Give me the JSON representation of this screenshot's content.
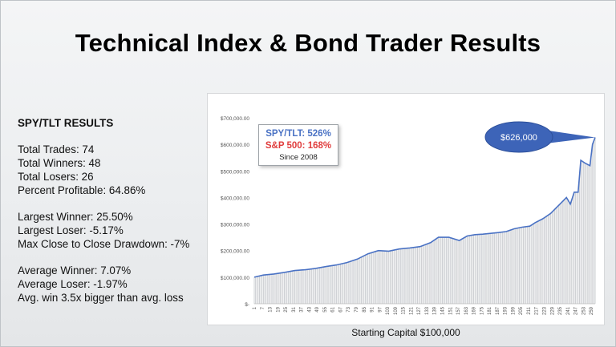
{
  "title": "Technical Index & Bond Trader Results",
  "stats": {
    "heading": "SPY/TLT RESULTS",
    "group1": [
      "Total Trades: 74",
      "Total Winners: 48",
      "Total Losers: 26",
      "Percent Profitable: 64.86%"
    ],
    "group2": [
      "Largest Winner: 25.50%",
      "Largest Loser: -5.17%",
      "Max Close to Close Drawdown: -7%"
    ],
    "group3": [
      "Average Winner: 7.07%",
      "Average Loser: -1.97%",
      "Avg. win 3.5x bigger than avg. loss"
    ]
  },
  "legend": {
    "line1": "SPY/TLT: 526%",
    "line2": "S&P 500: 168%",
    "line3": "Since 2008"
  },
  "callout": "$626,000",
  "caption": "Starting Capital $100,000",
  "colors": {
    "line": "#4a72c4",
    "bars": "#c9cbcf",
    "callout": "#3d64b8",
    "sp500": "#e03c3c"
  },
  "chart_data": {
    "type": "line",
    "ylim": [
      0,
      700000
    ],
    "y_ticks": [
      0,
      100000,
      200000,
      300000,
      400000,
      500000,
      600000,
      700000
    ],
    "y_tick_labels": [
      "$-",
      "$100,000.00",
      "$200,000.00",
      "$300,000.00",
      "$400,000.00",
      "$500,000.00",
      "$600,000.00",
      "$700,000.00"
    ],
    "x_tick_labels": [
      "1",
      "7",
      "13",
      "19",
      "25",
      "31",
      "37",
      "43",
      "49",
      "55",
      "61",
      "67",
      "73",
      "79",
      "85",
      "91",
      "97",
      "103",
      "109",
      "115",
      "121",
      "127",
      "133",
      "139",
      "145",
      "151",
      "157",
      "163",
      "169",
      "175",
      "181",
      "187",
      "193",
      "199",
      "205",
      "211",
      "217",
      "223",
      "229",
      "235",
      "241",
      "247",
      "253",
      "259"
    ],
    "x_range": [
      1,
      262
    ],
    "series": [
      {
        "points": [
          [
            1,
            100000
          ],
          [
            8,
            108000
          ],
          [
            16,
            112000
          ],
          [
            24,
            118000
          ],
          [
            32,
            125000
          ],
          [
            40,
            128000
          ],
          [
            48,
            133000
          ],
          [
            56,
            140000
          ],
          [
            64,
            146000
          ],
          [
            72,
            155000
          ],
          [
            80,
            168000
          ],
          [
            88,
            188000
          ],
          [
            96,
            200000
          ],
          [
            104,
            198000
          ],
          [
            112,
            206000
          ],
          [
            120,
            210000
          ],
          [
            128,
            215000
          ],
          [
            136,
            230000
          ],
          [
            142,
            250000
          ],
          [
            150,
            250000
          ],
          [
            158,
            238000
          ],
          [
            164,
            255000
          ],
          [
            170,
            260000
          ],
          [
            176,
            262000
          ],
          [
            182,
            265000
          ],
          [
            188,
            268000
          ],
          [
            194,
            272000
          ],
          [
            200,
            282000
          ],
          [
            206,
            288000
          ],
          [
            212,
            292000
          ],
          [
            216,
            305000
          ],
          [
            222,
            320000
          ],
          [
            228,
            340000
          ],
          [
            232,
            360000
          ],
          [
            236,
            380000
          ],
          [
            240,
            400000
          ],
          [
            243,
            375000
          ],
          [
            246,
            420000
          ],
          [
            249,
            420000
          ],
          [
            251,
            540000
          ],
          [
            254,
            530000
          ],
          [
            258,
            520000
          ],
          [
            260,
            600000
          ],
          [
            262,
            626000
          ]
        ]
      }
    ]
  }
}
